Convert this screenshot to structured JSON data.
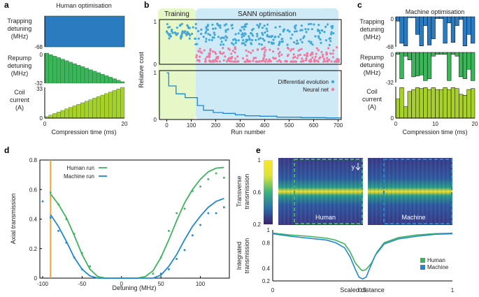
{
  "colors": {
    "blue": "#2b7bc0",
    "green": "#3cb55a",
    "lime": "#a8d02a",
    "pink": "#f07aa0",
    "cyan": "#43a8d8",
    "orange": "#f3a43a",
    "training_bg": "#e6f7c8",
    "sann_bg": "#cfeaf7",
    "line_blue": "#1f88d0"
  },
  "chart_data": [
    {
      "id": "a",
      "panel_label": "a",
      "type": "area",
      "title": "Human optimisation",
      "xlabel": "Compression time (ms)",
      "x_ticks": [
        "0",
        "20"
      ],
      "xlim": [
        0,
        20
      ],
      "subplots": [
        {
          "ylabel": [
            "Trapping",
            "detuning",
            "(MHz)"
          ],
          "ylim": [
            -68,
            0
          ],
          "y_ticks": [
            "",
            "-68"
          ],
          "profile": "constant",
          "color_key": "blue",
          "steps": 1
        },
        {
          "ylabel": [
            "Repump",
            "detuning",
            "(MHz)"
          ],
          "ylim": [
            -32,
            0
          ],
          "y_ticks": [
            "0",
            "-32"
          ],
          "profile": "ramp-down",
          "color_key": "green",
          "steps": 20
        },
        {
          "ylabel": [
            "Coil",
            "current",
            "(A)"
          ],
          "ylim": [
            0,
            33
          ],
          "y_ticks": [
            "33",
            "0"
          ],
          "profile": "ramp-up",
          "color_key": "lime",
          "steps": 20
        }
      ]
    },
    {
      "id": "b",
      "panel_label": "b",
      "type": "scatter",
      "region_labels": [
        "Training",
        "SANN optimisation"
      ],
      "xlabel": "Run number",
      "ylabel": "Relative cost",
      "x_ticks": [
        "0",
        "100",
        "200",
        "300",
        "400",
        "500",
        "600",
        "700"
      ],
      "xlim": [
        -30,
        730
      ],
      "training_range": [
        -10,
        118
      ],
      "top": {
        "ylim": [
          0,
          1.05
        ],
        "y_ticks": [
          "1",
          "0"
        ]
      },
      "bottom": {
        "ylim": [
          0,
          1.05
        ],
        "y_ticks": [
          "1",
          "0"
        ]
      },
      "legend": [
        "Differential evolution",
        "Neural net"
      ],
      "min_cost_steps": [
        [
          0,
          1.0
        ],
        [
          8,
          0.72
        ],
        [
          30,
          0.72
        ],
        [
          38,
          0.55
        ],
        [
          70,
          0.55
        ],
        [
          75,
          0.47
        ],
        [
          118,
          0.47
        ],
        [
          125,
          0.3
        ],
        [
          145,
          0.3
        ],
        [
          150,
          0.2
        ],
        [
          180,
          0.2
        ],
        [
          190,
          0.15
        ],
        [
          230,
          0.13
        ],
        [
          280,
          0.1
        ],
        [
          320,
          0.08
        ],
        [
          380,
          0.07
        ],
        [
          450,
          0.05
        ],
        [
          550,
          0.04
        ],
        [
          650,
          0.035
        ],
        [
          710,
          0.03
        ]
      ]
    },
    {
      "id": "c",
      "panel_label": "c",
      "type": "bar",
      "title": "Machine optimisation",
      "xlabel": "Compression time (ms)",
      "x_ticks": [
        "0",
        "10",
        "20"
      ],
      "xlim": [
        0,
        20
      ],
      "subplots": [
        {
          "ylabel": [
            "Trapping",
            "detuning",
            "(MHz)"
          ],
          "ylim": [
            -68,
            0
          ],
          "y_ticks": [
            "0",
            "-68"
          ],
          "color_key": "blue",
          "values": [
            -10,
            -60,
            -66,
            -2,
            -2,
            -40,
            -66,
            -20,
            -64,
            -50,
            -4,
            -4,
            -60,
            -14,
            -58,
            -20,
            -6,
            -66,
            -40,
            -60
          ]
        },
        {
          "ylabel": [
            "Repump",
            "detuning",
            "(MHz)"
          ],
          "ylim": [
            -32,
            0
          ],
          "y_ticks": [
            "0",
            "-32"
          ],
          "color_key": "green",
          "values": [
            -2,
            -28,
            -4,
            -8,
            -26,
            -25,
            -24,
            -30,
            -28,
            -4,
            -2,
            -2,
            -2,
            -30,
            -2,
            -4,
            -26,
            -28,
            -18,
            -30
          ]
        },
        {
          "ylabel": [
            "Coil",
            "current",
            "(A)"
          ],
          "ylim": [
            0,
            33
          ],
          "y_ticks": [
            "",
            "0"
          ],
          "color_key": "lime",
          "values": [
            20,
            32,
            12,
            28,
            30,
            32,
            31,
            32,
            30,
            32,
            30,
            30,
            32,
            30,
            32,
            31,
            25,
            24,
            30,
            31
          ]
        }
      ]
    },
    {
      "id": "d",
      "panel_label": "d",
      "type": "line",
      "xlabel": "Detuning (MHz)",
      "ylabel": "Axial transmission",
      "xlim": [
        -100,
        135
      ],
      "ylim": [
        0,
        0.8
      ],
      "x_ticks": [
        "-100",
        "-50",
        "0",
        "50",
        "100"
      ],
      "x_tick_values": [
        -100,
        -50,
        0,
        50,
        100
      ],
      "y_ticks": [
        "0",
        "0.2",
        "0.4",
        "0.6",
        "0.8"
      ],
      "y_tick_values": [
        0,
        0.2,
        0.4,
        0.6,
        0.8
      ],
      "marker_line_x": -90,
      "series": [
        {
          "name": "Human run",
          "color_key": "green",
          "fit_x": [
            -90,
            -80,
            -70,
            -60,
            -50,
            -40,
            -30,
            -20,
            -10,
            0,
            10,
            20,
            30,
            40,
            50,
            60,
            70,
            80,
            90,
            100,
            110,
            120,
            130
          ],
          "fit_y": [
            0.57,
            0.5,
            0.41,
            0.29,
            0.16,
            0.06,
            0.01,
            0,
            0,
            0,
            0,
            0,
            0.01,
            0.05,
            0.14,
            0.26,
            0.39,
            0.51,
            0.6,
            0.67,
            0.72,
            0.745,
            0.75
          ],
          "points_x": [
            -90,
            -80,
            -70,
            -60,
            -50,
            -40,
            40,
            50,
            60,
            70,
            80,
            90,
            100,
            110,
            120,
            130
          ],
          "points_y": [
            0.58,
            0.5,
            0.4,
            0.3,
            0.17,
            0.08,
            0.03,
            0.14,
            0.32,
            0.44,
            0.47,
            0.59,
            0.62,
            0.67,
            0.71,
            0.68
          ]
        },
        {
          "name": "Machine run",
          "color_key": "line_blue",
          "fit_x": [
            -90,
            -80,
            -70,
            -60,
            -50,
            -40,
            -30,
            -20,
            -10,
            0,
            10,
            20,
            30,
            40,
            50,
            60,
            70,
            80,
            90,
            100,
            110,
            120,
            130
          ],
          "fit_y": [
            0.43,
            0.35,
            0.25,
            0.14,
            0.06,
            0.015,
            0,
            0,
            0,
            0,
            0,
            0,
            0,
            0,
            0.02,
            0.08,
            0.16,
            0.26,
            0.35,
            0.42,
            0.48,
            0.52,
            0.54
          ],
          "points_x": [
            -100,
            -90,
            -80,
            -70,
            -60,
            -50,
            50,
            60,
            70,
            80,
            90,
            100,
            110,
            120,
            130
          ],
          "points_y": [
            0.52,
            0.41,
            0.32,
            0.24,
            0.14,
            0.06,
            0.03,
            0.06,
            0.13,
            0.19,
            0.29,
            0.36,
            0.44,
            0.44,
            0.48
          ]
        }
      ]
    },
    {
      "id": "e",
      "panel_label": "e",
      "type": "heatmap",
      "ylabel_top": [
        "Transverse",
        "transmission"
      ],
      "colorbar_ticks": [
        "1",
        "0.6",
        "0.2"
      ],
      "colorbar_tick_values": [
        1,
        0.6,
        0.2
      ],
      "colorbar_range": [
        0.2,
        1
      ],
      "image_labels": [
        "Human",
        "Machine"
      ],
      "axis_marker": "y",
      "bottom": {
        "type": "line",
        "xlabel": "Scaled distance",
        "ylabel": [
          "Integrated",
          "transmission"
        ],
        "x_ticks": [
          "0",
          "0.5",
          "1"
        ],
        "x_tick_values": [
          0,
          0.5,
          1
        ],
        "y_ticks": [
          "1",
          "0.8",
          "0.4",
          "0.2"
        ],
        "y_tick_values": [
          1,
          0.8,
          0.4,
          0.2
        ],
        "ylim": [
          0.2,
          1
        ],
        "legend": [
          "Human",
          "Machine"
        ],
        "series": [
          {
            "name": "Human",
            "color_key": "green",
            "x": [
              0,
              0.1,
              0.2,
              0.3,
              0.35,
              0.4,
              0.43,
              0.46,
              0.49,
              0.5,
              0.52,
              0.55,
              0.58,
              0.62,
              0.7,
              0.8,
              0.9,
              1
            ],
            "y": [
              0.95,
              0.92,
              0.9,
              0.87,
              0.84,
              0.78,
              0.66,
              0.48,
              0.38,
              0.36,
              0.38,
              0.48,
              0.65,
              0.8,
              0.88,
              0.92,
              0.94,
              0.95
            ]
          },
          {
            "name": "Machine",
            "color_key": "line_blue",
            "x": [
              0,
              0.1,
              0.2,
              0.3,
              0.35,
              0.4,
              0.43,
              0.46,
              0.48,
              0.5,
              0.52,
              0.54,
              0.57,
              0.62,
              0.7,
              0.8,
              0.9,
              1
            ],
            "y": [
              0.94,
              0.9,
              0.87,
              0.84,
              0.8,
              0.72,
              0.58,
              0.38,
              0.26,
              0.23,
              0.26,
              0.4,
              0.6,
              0.78,
              0.86,
              0.9,
              0.93,
              0.94
            ]
          }
        ]
      }
    }
  ]
}
